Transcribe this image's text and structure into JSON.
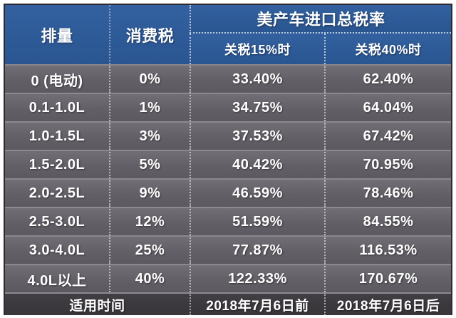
{
  "chart_data": {
    "type": "table",
    "title": "美产车进口总税率",
    "header": {
      "displacement": "排量",
      "consumption_tax": "消费税",
      "group": "美产车进口总税率",
      "tariff15": "关税15%时",
      "tariff40": "关税40%时"
    },
    "rows": [
      {
        "displacement": "0 (电动)",
        "consumption_tax": "0%",
        "tariff15_total": "33.40%",
        "tariff40_total": "62.40%"
      },
      {
        "displacement": "0.1-1.0L",
        "consumption_tax": "1%",
        "tariff15_total": "34.75%",
        "tariff40_total": "64.04%"
      },
      {
        "displacement": "1.0-1.5L",
        "consumption_tax": "3%",
        "tariff15_total": "37.53%",
        "tariff40_total": "67.42%"
      },
      {
        "displacement": "1.5-2.0L",
        "consumption_tax": "5%",
        "tariff15_total": "40.42%",
        "tariff40_total": "70.95%"
      },
      {
        "displacement": "2.0-2.5L",
        "consumption_tax": "9%",
        "tariff15_total": "46.59%",
        "tariff40_total": "78.46%"
      },
      {
        "displacement": "2.5-3.0L",
        "consumption_tax": "12%",
        "tariff15_total": "51.59%",
        "tariff40_total": "84.55%"
      },
      {
        "displacement": "3.0-4.0L",
        "consumption_tax": "25%",
        "tariff15_total": "77.87%",
        "tariff40_total": "116.53%"
      },
      {
        "displacement": "4.0L以上",
        "consumption_tax": "40%",
        "tariff15_total": "122.33%",
        "tariff40_total": "170.67%"
      }
    ],
    "footer": {
      "label": "适用时间",
      "tariff15_period": "2018年7月6日前",
      "tariff40_period": "2018年7月6日后"
    }
  },
  "colors": {
    "header_bg": "#2e5c9e",
    "row_bg": "#67646b",
    "footer_bg": "#3b383e",
    "separator": "#8b8890",
    "text": "#ffffff"
  }
}
